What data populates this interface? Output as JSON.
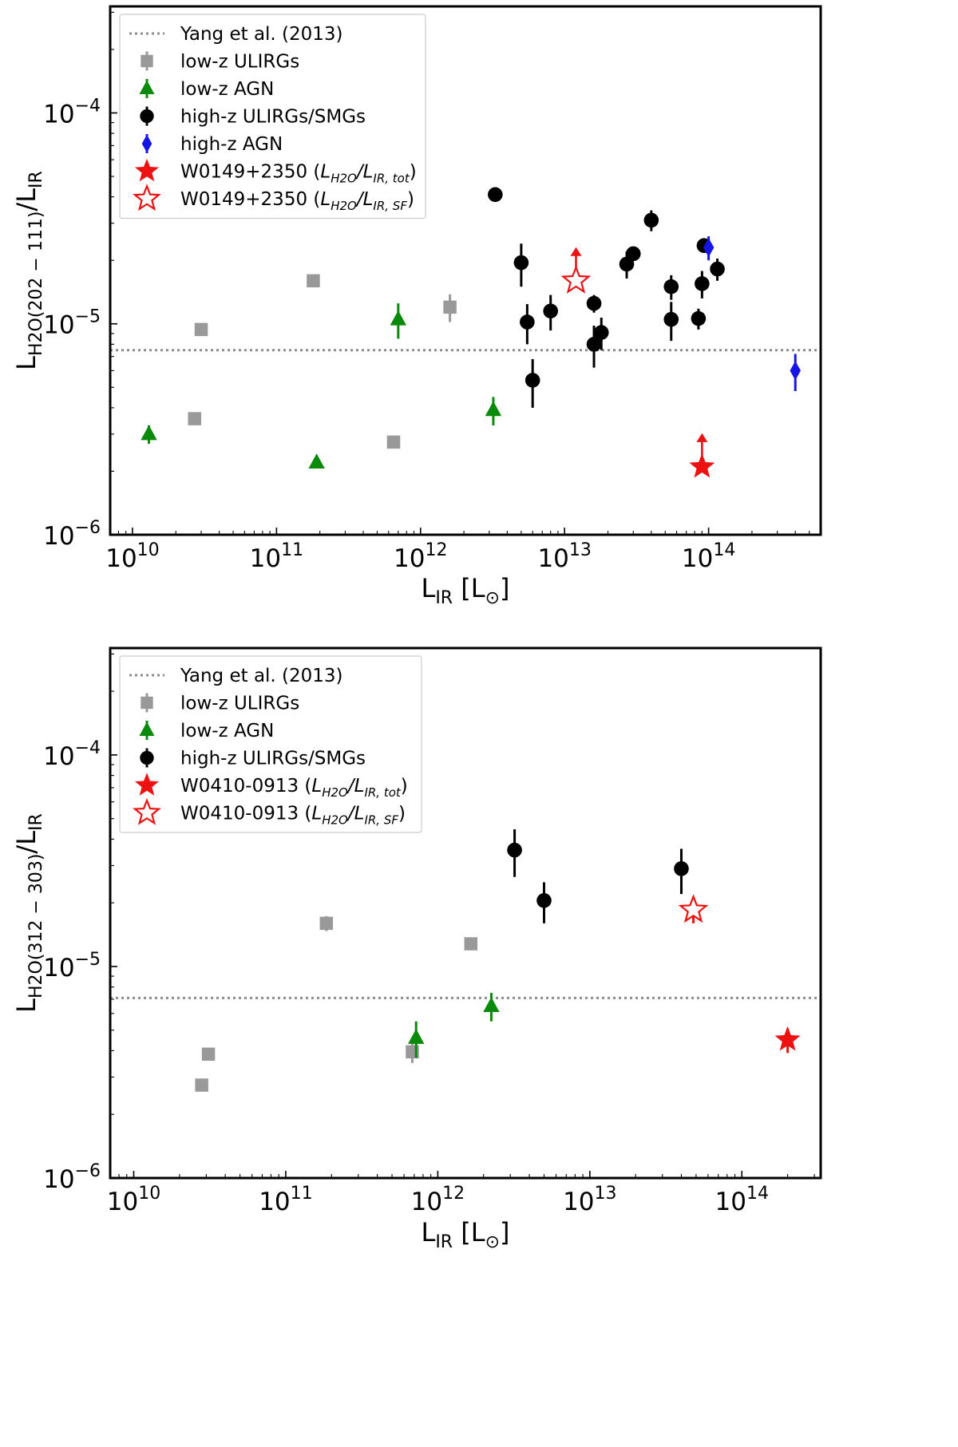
{
  "chart_data": [
    {
      "type": "scatter",
      "xscale": "log",
      "yscale": "log",
      "xlim": [
        7000000000.0,
        600000000000000.0
      ],
      "ylim": [
        1e-06,
        0.00032
      ],
      "xlabel": "L",
      "xlabel_sub": "IR",
      "xlabel_unit": " [L",
      "xlabel_unit_sub": "⊙",
      "xlabel_close": "]",
      "ylabel": "L",
      "ylabel_sub": "H2O(202 − 111)",
      "ylabel_div": "/L",
      "ylabel_div_sub": "IR",
      "x_ticks": [
        {
          "value": 10000000000.0,
          "base": "10",
          "exp": "10"
        },
        {
          "value": 100000000000.0,
          "base": "10",
          "exp": "11"
        },
        {
          "value": 1000000000000.0,
          "base": "10",
          "exp": "12"
        },
        {
          "value": 10000000000000.0,
          "base": "10",
          "exp": "13"
        },
        {
          "value": 100000000000000.0,
          "base": "10",
          "exp": "14"
        }
      ],
      "y_ticks": [
        {
          "value": 1e-06,
          "base": "10",
          "exp": "−6"
        },
        {
          "value": 1e-05,
          "base": "10",
          "exp": "−5"
        },
        {
          "value": 0.0001,
          "base": "10",
          "exp": "−4"
        }
      ],
      "reference_line": {
        "y": 7.5e-06,
        "color": "#8c8c8c"
      },
      "legend_location": "top-left",
      "legend": [
        {
          "marker": "dotted-line",
          "color": "#8c8c8c",
          "label": "Yang et al. (2013)"
        },
        {
          "marker": "square",
          "color": "#999999",
          "label": "low-z ULIRGs"
        },
        {
          "marker": "triangle",
          "color": "#0a8a0a",
          "label": "low-z AGN"
        },
        {
          "marker": "circle",
          "color": "#000000",
          "label": "high-z ULIRGs/SMGs"
        },
        {
          "marker": "diamond",
          "color": "#1515e6",
          "label": "high-z AGN"
        },
        {
          "marker": "star-filled",
          "color": "#ee1111",
          "label": "W0149+2350 (",
          "math": "L",
          "math_sub": "H2O",
          "math_mid": "/L",
          "math_sub2": "IR, tot",
          "label_end": ")"
        },
        {
          "marker": "star-open",
          "color": "#ee1111",
          "label": "W0149+2350 (",
          "math": "L",
          "math_sub": "H2O",
          "math_mid": "/L",
          "math_sub2": "IR, SF",
          "label_end": ")"
        }
      ],
      "series": [
        {
          "name": "low-z ULIRGs",
          "marker": "square",
          "color": "#999999",
          "points": [
            {
              "x": 30000000000.0,
              "y": 9.4e-06,
              "yerr": [
                4e-07,
                4e-07
              ]
            },
            {
              "x": 27000000000.0,
              "y": 3.55e-06,
              "yerr": [
                1e-07,
                1e-07
              ]
            },
            {
              "x": 180000000000.0,
              "y": 1.6e-05,
              "yerr": [
                5e-07,
                5e-07
              ]
            },
            {
              "x": 650000000000.0,
              "y": 2.75e-06,
              "yerr": [
                1e-07,
                1e-07
              ]
            },
            {
              "x": 1600000000000.0,
              "y": 1.2e-05,
              "yerr": [
                1.8e-06,
                1.8e-06
              ]
            }
          ]
        },
        {
          "name": "low-z AGN",
          "marker": "triangle",
          "color": "#0a8a0a",
          "points": [
            {
              "x": 13000000000.0,
              "y": 3e-06,
              "yerr": [
                3e-07,
                3e-07
              ]
            },
            {
              "x": 190000000000.0,
              "y": 2.2e-06,
              "yerr": [
                8e-08,
                8e-08
              ]
            },
            {
              "x": 700000000000.0,
              "y": 1.05e-05,
              "yerr": [
                2e-06,
                2e-06
              ]
            },
            {
              "x": 3200000000000.0,
              "y": 3.9e-06,
              "yerr": [
                6e-07,
                6e-07
              ]
            }
          ]
        },
        {
          "name": "high-z ULIRGs/SMGs",
          "marker": "circle",
          "color": "#000000",
          "points": [
            {
              "x": 3300000000000.0,
              "y": 4.1e-05,
              "yerr": [
                0,
                0
              ]
            },
            {
              "x": 5000000000000.0,
              "y": 1.95e-05,
              "yerr": [
                4.5e-06,
                4.5e-06
              ]
            },
            {
              "x": 5500000000000.0,
              "y": 1.02e-05,
              "yerr": [
                2.2e-06,
                2.2e-06
              ]
            },
            {
              "x": 6000000000000.0,
              "y": 5.4e-06,
              "yerr": [
                1.4e-06,
                1.4e-06
              ]
            },
            {
              "x": 8000000000000.0,
              "y": 1.15e-05,
              "yerr": [
                2.2e-06,
                2.2e-06
              ]
            },
            {
              "x": 16000000000000.0,
              "y": 1.25e-05,
              "yerr": [
                1.2e-06,
                1.2e-06
              ]
            },
            {
              "x": 16000000000000.0,
              "y": 8e-06,
              "yerr": [
                1.8e-06,
                1.8e-06
              ]
            },
            {
              "x": 18000000000000.0,
              "y": 9.1e-06,
              "yerr": [
                1.6e-06,
                1.6e-06
              ]
            },
            {
              "x": 27000000000000.0,
              "y": 1.92e-05,
              "yerr": [
                2.8e-06,
                2.8e-06
              ]
            },
            {
              "x": 30000000000000.0,
              "y": 2.15e-05,
              "yerr": [
                1e-06,
                1e-06
              ]
            },
            {
              "x": 40000000000000.0,
              "y": 3.1e-05,
              "yerr": [
                3.5e-06,
                3.5e-06
              ]
            },
            {
              "x": 55000000000000.0,
              "y": 1.5e-05,
              "yerr": [
                2e-06,
                2e-06
              ]
            },
            {
              "x": 55000000000000.0,
              "y": 1.05e-05,
              "yerr": [
                2.2e-06,
                2.2e-06
              ]
            },
            {
              "x": 85000000000000.0,
              "y": 1.06e-05,
              "yerr": [
                1.2e-06,
                1.2e-06
              ]
            },
            {
              "x": 90000000000000.0,
              "y": 1.55e-05,
              "yerr": [
                2.3e-06,
                2.3e-06
              ]
            },
            {
              "x": 93000000000000.0,
              "y": 2.35e-05,
              "yerr": [
                1e-06,
                1e-06
              ]
            },
            {
              "x": 115000000000000.0,
              "y": 1.82e-05,
              "yerr": [
                2.2e-06,
                2.2e-06
              ]
            }
          ]
        },
        {
          "name": "high-z AGN",
          "marker": "diamond",
          "color": "#1515e6",
          "points": [
            {
              "x": 100000000000000.0,
              "y": 2.3e-05,
              "yerr": [
                3e-06,
                3e-06
              ]
            },
            {
              "x": 400000000000000.0,
              "y": 6e-06,
              "yerr": [
                1.2e-06,
                1.2e-06
              ]
            }
          ]
        },
        {
          "name": "W0149+2350 (L_H2O/L_IR,tot)",
          "marker": "star-filled",
          "color": "#ee1111",
          "points": [
            {
              "x": 90000000000000.0,
              "y": 2.1e-06,
              "lower_limit": true
            }
          ]
        },
        {
          "name": "W0149+2350 (L_H2O/L_IR,SF)",
          "marker": "star-open",
          "color": "#ee1111",
          "points": [
            {
              "x": 12000000000000.0,
              "y": 1.6e-05,
              "lower_limit": true
            }
          ]
        }
      ]
    },
    {
      "type": "scatter",
      "xscale": "log",
      "yscale": "log",
      "xlim": [
        7000000000.0,
        330000000000000.0
      ],
      "ylim": [
        1e-06,
        0.00032
      ],
      "xlabel": "L",
      "xlabel_sub": "IR",
      "xlabel_unit": " [L",
      "xlabel_unit_sub": "⊙",
      "xlabel_close": "]",
      "ylabel": "L",
      "ylabel_sub": "H2O(312 − 303)",
      "ylabel_div": "/L",
      "ylabel_div_sub": "IR",
      "x_ticks": [
        {
          "value": 10000000000.0,
          "base": "10",
          "exp": "10"
        },
        {
          "value": 100000000000.0,
          "base": "10",
          "exp": "11"
        },
        {
          "value": 1000000000000.0,
          "base": "10",
          "exp": "12"
        },
        {
          "value": 10000000000000.0,
          "base": "10",
          "exp": "13"
        },
        {
          "value": 100000000000000.0,
          "base": "10",
          "exp": "14"
        }
      ],
      "y_ticks": [
        {
          "value": 1e-06,
          "base": "10",
          "exp": "−6"
        },
        {
          "value": 1e-05,
          "base": "10",
          "exp": "−5"
        },
        {
          "value": 0.0001,
          "base": "10",
          "exp": "−4"
        }
      ],
      "reference_line": {
        "y": 7.1e-06,
        "color": "#8c8c8c"
      },
      "legend_location": "top-left",
      "legend": [
        {
          "marker": "dotted-line",
          "color": "#8c8c8c",
          "label": "Yang et al. (2013)"
        },
        {
          "marker": "square",
          "color": "#999999",
          "label": "low-z ULIRGs"
        },
        {
          "marker": "triangle",
          "color": "#0a8a0a",
          "label": "low-z AGN"
        },
        {
          "marker": "circle",
          "color": "#000000",
          "label": "high-z ULIRGs/SMGs"
        },
        {
          "marker": "star-filled",
          "color": "#ee1111",
          "label": "W0410-0913 (",
          "math": "L",
          "math_sub": "H2O",
          "math_mid": "/L",
          "math_sub2": "IR, tot",
          "label_end": ")"
        },
        {
          "marker": "star-open",
          "color": "#ee1111",
          "label": "W0410-0913 (",
          "math": "L",
          "math_sub": "H2O",
          "math_mid": "/L",
          "math_sub2": "IR, SF",
          "label_end": ")"
        }
      ],
      "series": [
        {
          "name": "low-z ULIRGs",
          "marker": "square",
          "color": "#999999",
          "points": [
            {
              "x": 28000000000.0,
              "y": 2.75e-06,
              "yerr": [
                1e-07,
                1e-07
              ]
            },
            {
              "x": 31000000000.0,
              "y": 3.85e-06,
              "yerr": [
                2.5e-07,
                2.5e-07
              ]
            },
            {
              "x": 185000000000.0,
              "y": 1.6e-05,
              "yerr": [
                1.3e-06,
                1.3e-06
              ]
            },
            {
              "x": 680000000000.0,
              "y": 3.95e-06,
              "yerr": [
                4.5e-07,
                4.5e-07
              ]
            },
            {
              "x": 1650000000000.0,
              "y": 1.28e-05,
              "yerr": [
                4e-07,
                4e-07
              ]
            }
          ]
        },
        {
          "name": "low-z AGN",
          "marker": "triangle",
          "color": "#0a8a0a",
          "points": [
            {
              "x": 720000000000.0,
              "y": 4.6e-06,
              "yerr": [
                9e-07,
                9e-07
              ]
            },
            {
              "x": 2250000000000.0,
              "y": 6.5e-06,
              "yerr": [
                1e-06,
                1e-06
              ]
            }
          ]
        },
        {
          "name": "high-z ULIRGs/SMGs",
          "marker": "circle",
          "color": "#000000",
          "points": [
            {
              "x": 3200000000000.0,
              "y": 3.55e-05,
              "yerr": [
                9e-06,
                9e-06
              ]
            },
            {
              "x": 5000000000000.0,
              "y": 2.05e-05,
              "yerr": [
                4.5e-06,
                4.5e-06
              ]
            },
            {
              "x": 40000000000000.0,
              "y": 2.9e-05,
              "yerr": [
                7e-06,
                7e-06
              ]
            }
          ]
        },
        {
          "name": "W0410-0913 (L_H2O/L_IR,tot)",
          "marker": "star-filled",
          "color": "#ee1111",
          "points": [
            {
              "x": 200000000000000.0,
              "y": 4.5e-06,
              "yerr": [
                6e-07,
                6e-07
              ]
            }
          ]
        },
        {
          "name": "W0410-0913 (L_H2O/L_IR,SF)",
          "marker": "star-open",
          "color": "#ee1111",
          "points": [
            {
              "x": 48000000000000.0,
              "y": 1.85e-05,
              "yerr": [
                2.5e-06,
                2.5e-06
              ]
            }
          ]
        }
      ]
    }
  ]
}
